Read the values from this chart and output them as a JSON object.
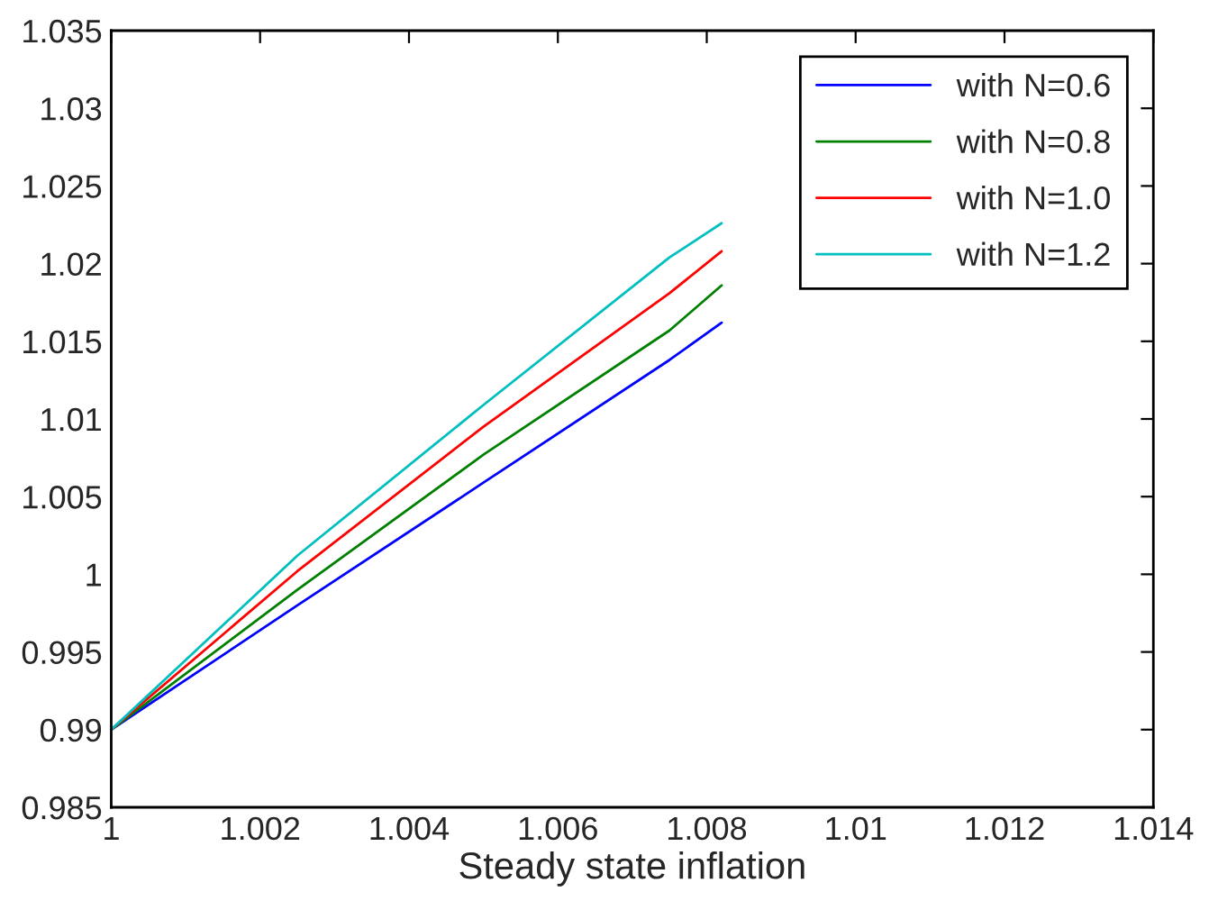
{
  "chart_data": {
    "type": "line",
    "xlabel": "Steady state inflation",
    "x": [
      1,
      1.0025,
      1.005,
      1.0075,
      1.0082
    ],
    "series": [
      {
        "name": "with N=0.6",
        "color": "#0000ff",
        "values": [
          0.99,
          0.998,
          1.0059,
          1.0138,
          1.0162
        ]
      },
      {
        "name": "with N=0.8",
        "color": "#008000",
        "values": [
          0.99,
          0.999,
          1.0077,
          1.0157,
          1.0186
        ]
      },
      {
        "name": "with N=1.0",
        "color": "#ff0000",
        "values": [
          0.99,
          1.0002,
          1.0095,
          1.0181,
          1.0208
        ]
      },
      {
        "name": "with N=1.2",
        "color": "#00bfbf",
        "values": [
          0.99,
          1.0012,
          1.0109,
          1.0204,
          1.0226
        ]
      }
    ],
    "xlim": [
      1,
      1.014
    ],
    "xticks": [
      1,
      1.002,
      1.004,
      1.006,
      1.008,
      1.01,
      1.012,
      1.014
    ],
    "ylim": [
      0.985,
      1.035
    ],
    "yticks": [
      0.985,
      0.99,
      0.995,
      1,
      1.005,
      1.01,
      1.015,
      1.02,
      1.025,
      1.03,
      1.035
    ],
    "grid": false,
    "legend": "top right",
    "line_style": "solid",
    "marker": "none"
  }
}
